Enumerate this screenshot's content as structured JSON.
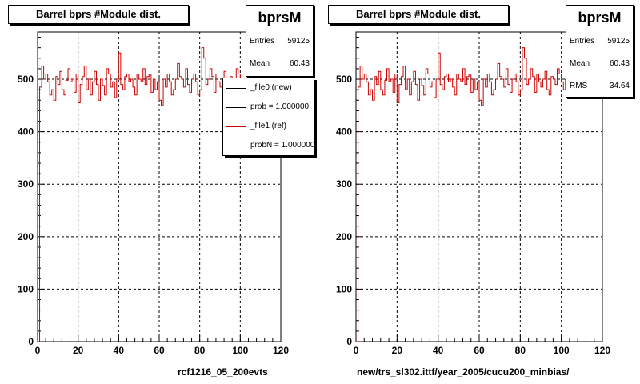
{
  "chart_data": [
    {
      "type": "line",
      "title": "Barrel bprs #Module dist.",
      "xlabel": "rcf1216_05_200evts",
      "ylabel": "",
      "xlim": [
        0,
        120
      ],
      "ylim": [
        0,
        590
      ],
      "xticks": [
        "0",
        "20",
        "40",
        "60",
        "80",
        "100",
        "120"
      ],
      "yticks": [
        "0",
        "100",
        "200",
        "300",
        "400",
        "500"
      ],
      "grid": true,
      "stats": {
        "name": "bprsM",
        "rows": [
          {
            "label": "Entries",
            "value": "59125"
          },
          {
            "label": "Mean",
            "value": "60.43"
          }
        ]
      },
      "legend": [
        {
          "label": "_file0 (new)",
          "color": "#000000"
        },
        {
          "label": "prob = 1.000000",
          "color": "#000000"
        },
        {
          "label": "_file1 (ref)",
          "color": "#cc0000"
        },
        {
          "label": "probN = 1.000000",
          "color": "#cc0000"
        }
      ],
      "series": [
        {
          "color": "#cc0000",
          "x_start": 0,
          "bin_width": 1,
          "values": [
            0,
            485,
            525,
            500,
            510,
            495,
            470,
            480,
            460,
            505,
            490,
            515,
            480,
            470,
            498,
            520,
            495,
            500,
            475,
            510,
            455,
            490,
            505,
            525,
            480,
            500,
            470,
            495,
            515,
            490,
            460,
            500,
            488,
            470,
            520,
            510,
            485,
            495,
            465,
            500,
            550,
            490,
            480,
            505,
            510,
            495,
            500,
            485,
            470,
            510,
            500,
            495,
            520,
            490,
            505,
            510,
            475,
            500,
            480,
            495,
            460,
            450,
            500,
            485,
            510,
            495,
            470,
            480,
            500,
            530,
            505,
            500,
            485,
            520,
            490,
            475,
            500,
            510,
            495,
            470,
            480,
            560,
            540,
            490,
            500,
            520,
            505,
            475,
            510,
            495,
            485,
            500,
            515,
            480,
            470,
            505,
            500,
            490,
            520,
            510,
            495,
            480,
            500,
            520,
            470,
            505,
            500,
            485,
            510,
            495,
            465,
            500,
            520,
            475,
            500,
            490,
            505,
            480,
            495,
            510
          ]
        }
      ]
    },
    {
      "type": "line",
      "title": "Barrel bprs #Module dist.",
      "xlabel": "new/trs_sl302.ittf/year_2005/cucu200_minbias/",
      "ylabel": "",
      "xlim": [
        0,
        120
      ],
      "ylim": [
        0,
        590
      ],
      "xticks": [
        "0",
        "20",
        "40",
        "60",
        "80",
        "100",
        "120"
      ],
      "yticks": [
        "0",
        "100",
        "200",
        "300",
        "400",
        "500"
      ],
      "grid": true,
      "stats": {
        "name": "bprsM",
        "rows": [
          {
            "label": "Entries",
            "value": "59125"
          },
          {
            "label": "Mean",
            "value": "60.43"
          },
          {
            "label": "RMS",
            "value": "34.64"
          }
        ]
      },
      "series": [
        {
          "color": "#cc0000",
          "x_start": 0,
          "bin_width": 1,
          "values": [
            0,
            485,
            525,
            500,
            510,
            495,
            470,
            480,
            460,
            505,
            490,
            515,
            480,
            470,
            498,
            520,
            495,
            500,
            475,
            510,
            455,
            490,
            505,
            525,
            480,
            500,
            470,
            495,
            515,
            490,
            460,
            500,
            488,
            470,
            520,
            510,
            485,
            495,
            465,
            500,
            550,
            490,
            480,
            505,
            510,
            495,
            500,
            485,
            470,
            510,
            500,
            495,
            520,
            490,
            505,
            510,
            475,
            500,
            480,
            495,
            460,
            450,
            500,
            485,
            510,
            495,
            470,
            480,
            500,
            530,
            505,
            500,
            485,
            520,
            490,
            475,
            500,
            510,
            495,
            470,
            480,
            560,
            540,
            490,
            500,
            520,
            505,
            475,
            510,
            495,
            485,
            500,
            515,
            480,
            470,
            505,
            500,
            490,
            520,
            510,
            495,
            480,
            500,
            520,
            470,
            505,
            500,
            485,
            510,
            495,
            465,
            500,
            520,
            475,
            500,
            490,
            505,
            480,
            495,
            510
          ]
        }
      ]
    }
  ]
}
